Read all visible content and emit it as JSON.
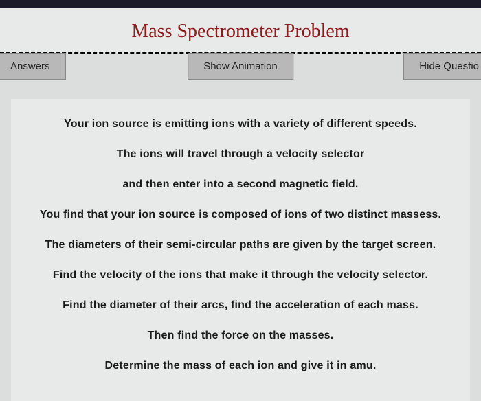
{
  "title": "Mass Spectrometer Problem",
  "buttons": {
    "left": "Answers",
    "center": "Show Animation",
    "right": "Hide Questio"
  },
  "content": {
    "lines": [
      "Your ion source is emitting ions with a variety of different speeds.",
      "The ions will travel through a velocity selector",
      "and then enter into a second magnetic field.",
      "You find that your ion source is composed of ions of two distinct massess.",
      "The diameters of their semi-circular paths are given by the target screen.",
      "Find the velocity of the ions that make it through the velocity selector.",
      "Find the diameter of their arcs, find the acceleration of each mass.",
      "Then find the force on the masses.",
      "Determine the mass of each ion and give it in amu."
    ]
  },
  "colors": {
    "title_color": "#8b1a1a",
    "background": "#dcdedd",
    "panel_background": "#e8eae9",
    "button_background": "#b8b8b8",
    "text_color": "#1a1a1a"
  }
}
